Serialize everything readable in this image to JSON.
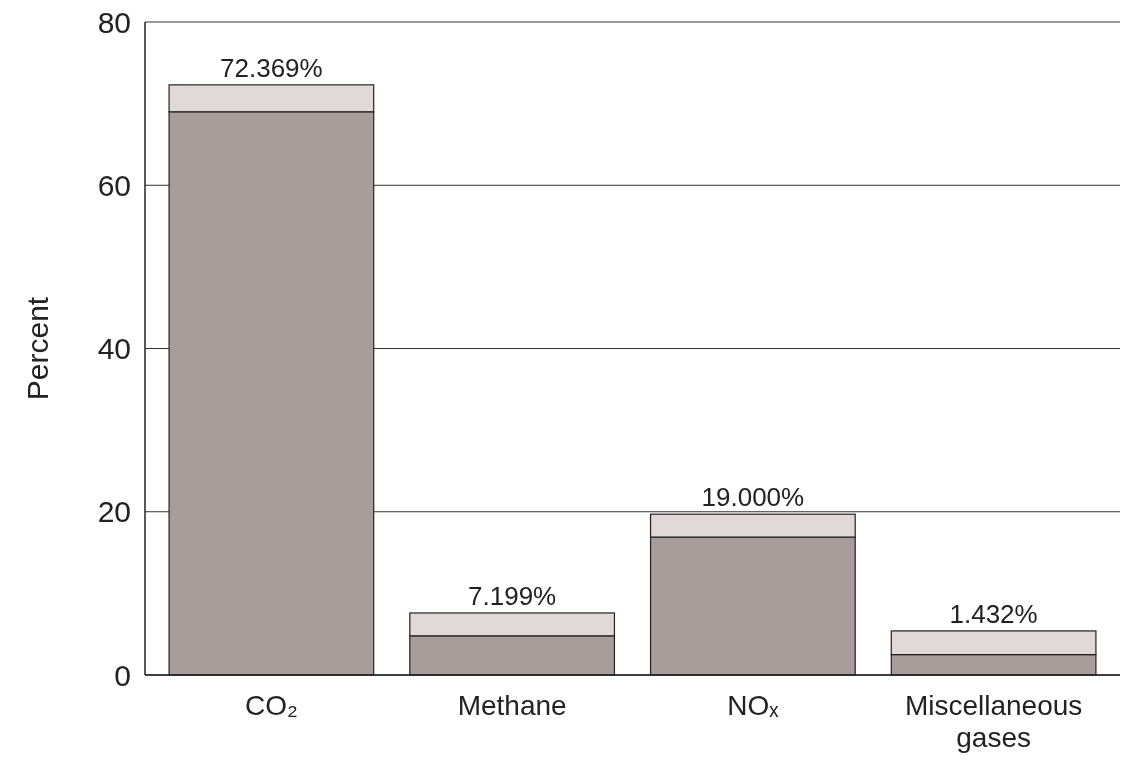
{
  "chart_data": {
    "type": "bar",
    "stacked": true,
    "ylabel": "Percent",
    "categories": [
      "CO₂",
      "Methane",
      "NOₓ",
      "Miscellaneous gases"
    ],
    "series": [
      {
        "color": "#a89d9a",
        "values": [
          69.0,
          4.8,
          16.9,
          2.5
        ]
      },
      {
        "color": "#e0d9d7",
        "values": [
          3.3,
          2.8,
          2.8,
          2.9
        ]
      }
    ],
    "annotations": [
      {
        "text": "72.369%",
        "x": "CO₂",
        "y": 72.3
      },
      {
        "text": "7.199%",
        "x": "Methane",
        "y": 7.6
      },
      {
        "text": "19.000%",
        "x": "NOₓ",
        "y": 19.7
      },
      {
        "text": "1.432%",
        "x": "Miscellaneous gases",
        "y": 5.4
      }
    ],
    "ylim": [
      0,
      80
    ],
    "yticks": [
      0,
      20,
      40,
      60,
      80
    ],
    "grid": "y"
  }
}
